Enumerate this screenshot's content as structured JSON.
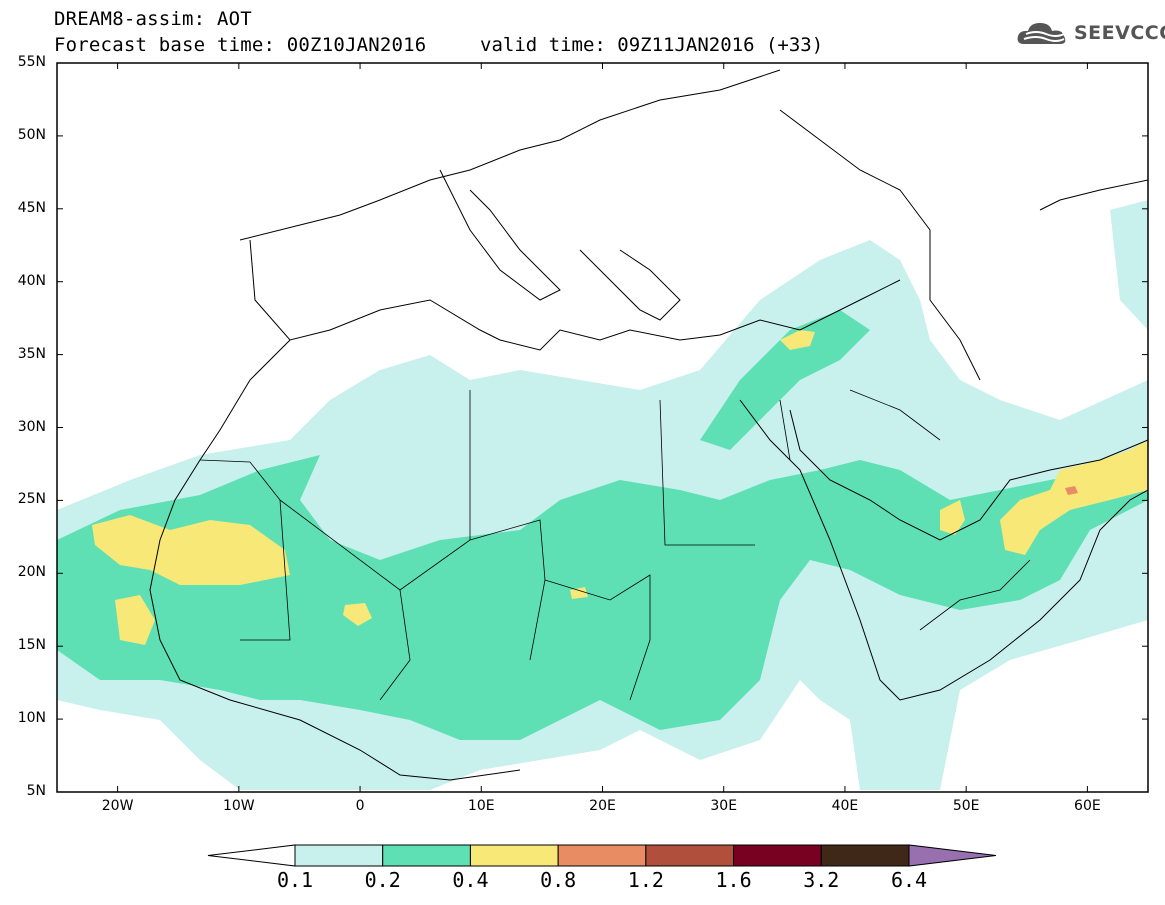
{
  "header": {
    "title_line1": "DREAM8-assim: AOT",
    "title_line2": "Forecast base time: 00Z10JAN2016",
    "valid_time": "valid time: 09Z11JAN2016 (+33)",
    "logo_text": "SEEVCCC"
  },
  "map": {
    "lat_labels": [
      "55N",
      "50N",
      "45N",
      "40N",
      "35N",
      "30N",
      "25N",
      "20N",
      "15N",
      "10N",
      "5N"
    ],
    "lon_labels": [
      "20W",
      "10W",
      "0",
      "10E",
      "20E",
      "30E",
      "40E",
      "50E",
      "60E"
    ],
    "extent": {
      "lon_min": -25,
      "lon_max": 65,
      "lat_min": 5,
      "lat_max": 55
    }
  },
  "colorbar": {
    "labels": [
      "0.1",
      "0.2",
      "0.4",
      "0.8",
      "1.2",
      "1.6",
      "3.2",
      "6.4"
    ],
    "colors": [
      "#ffffff",
      "#c8f0ec",
      "#5ee0b4",
      "#f8e878",
      "#e88c64",
      "#b0503c",
      "#780020",
      "#402818",
      "#9870b0"
    ]
  }
}
